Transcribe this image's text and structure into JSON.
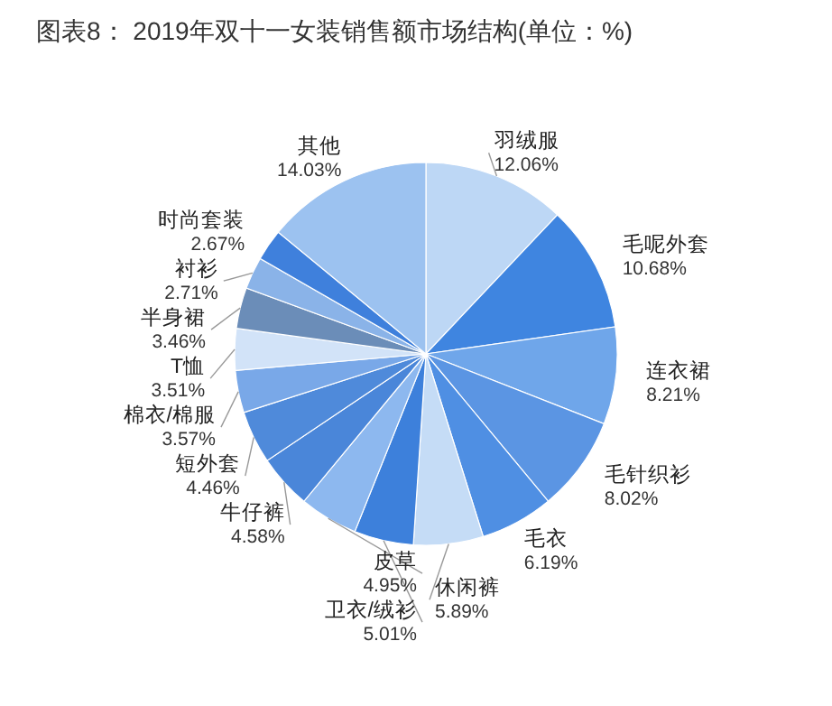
{
  "chart_data": {
    "type": "pie",
    "title": "图表8： 2019年双十一女装销售额市场结构(单位：%)",
    "categories": [
      "羽绒服",
      "毛呢外套",
      "连衣裙",
      "毛针织衫",
      "毛衣",
      "休闲裤",
      "卫衣/绒衫",
      "皮草",
      "牛仔裤",
      "短外套",
      "棉衣/棉服",
      "T恤",
      "半身裙",
      "衬衫",
      "时尚套装",
      "其他"
    ],
    "values": [
      12.06,
      10.68,
      8.21,
      8.02,
      6.19,
      5.89,
      5.01,
      4.95,
      4.58,
      4.46,
      3.57,
      3.51,
      3.46,
      2.71,
      2.67,
      14.03
    ],
    "value_labels": [
      "12.06%",
      "10.68%",
      "8.21%",
      "8.02%",
      "6.19%",
      "5.89%",
      "5.01%",
      "4.95%",
      "4.58%",
      "4.46%",
      "3.57%",
      "3.51%",
      "3.46%",
      "2.71%",
      "2.67%",
      "14.03%"
    ],
    "colors": [
      "#bdd7f5",
      "#3f85e0",
      "#6fa6ea",
      "#5b95e3",
      "#4f8fe3",
      "#c5dcf6",
      "#3d80db",
      "#8db8ef",
      "#4a86d9",
      "#4f8ada",
      "#79a8e8",
      "#d2e3f8",
      "#6b8db8",
      "#8ab3e8",
      "#3f80dc",
      "#9cc2f0"
    ]
  }
}
